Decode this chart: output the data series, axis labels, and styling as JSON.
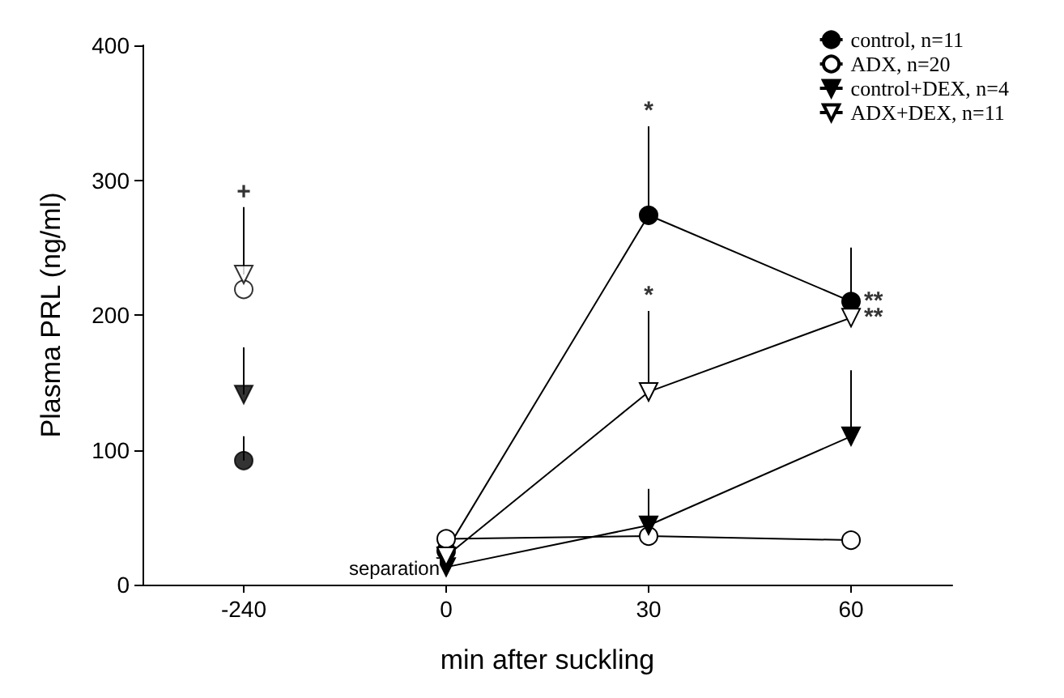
{
  "chart_data": {
    "type": "line",
    "xlabel": "min after suckling",
    "ylabel": "Plasma PRL (ng/ml)",
    "categories": [
      "-240",
      "0",
      "30",
      "60"
    ],
    "ylim": [
      0,
      400
    ],
    "yticks": [
      0,
      100,
      200,
      300,
      400
    ],
    "grid": false,
    "legend": "top right",
    "series": [
      {
        "name": "control, n=11",
        "color": "#000000",
        "marker": "circle",
        "values": [
          null,
          25,
          274,
          210
        ],
        "errors": [
          null,
          null,
          [
            274,
            340
          ],
          [
            210,
            250
          ]
        ]
      },
      {
        "name": "ADX, n=20",
        "color": "#ffffff",
        "marker": "circle",
        "values": [
          null,
          34,
          36,
          33
        ]
      },
      {
        "name": "control+DEX, n=4",
        "color": "#000000",
        "marker": "triangle",
        "values": [
          null,
          13,
          44,
          110
        ],
        "errors": [
          null,
          null,
          [
            44,
            71
          ],
          [
            110,
            159
          ]
        ]
      },
      {
        "name": "ADX+DEX, n=11",
        "color": "#ffffff",
        "marker": "triangle",
        "values": [
          null,
          21,
          143,
          198
        ],
        "errors": [
          null,
          null,
          [
            143,
            203
          ],
          null
        ]
      },
      {
        "type": "scatter",
        "color": "#000000",
        "marker": "circle",
        "values": [
          92,
          null,
          null,
          null
        ],
        "errors": [
          [
            92,
            110
          ],
          null,
          null,
          null
        ]
      },
      {
        "type": "scatter",
        "color": "#ffffff",
        "marker": "circle",
        "values": [
          219,
          null,
          null,
          null
        ]
      },
      {
        "type": "scatter",
        "color": "#000000",
        "marker": "triangle",
        "values": [
          141,
          null,
          null,
          null
        ],
        "errors": [
          [
            141,
            176
          ],
          null,
          null,
          null
        ]
      },
      {
        "type": "scatter",
        "color": "#ffffff",
        "marker": "triangle",
        "values": [
          230,
          null,
          null,
          null
        ],
        "errors": [
          [
            230,
            280
          ],
          null,
          null,
          null
        ]
      }
    ],
    "annotations": [
      {
        "text": "*",
        "x": "30",
        "y": 340
      },
      {
        "text": "*",
        "x": "30",
        "y": 203
      },
      {
        "text": "**",
        "x": "60",
        "y": 210
      },
      {
        "text": "**",
        "x": "60",
        "y": 198
      },
      {
        "text": "+",
        "x": "-240",
        "y": 280
      },
      "separation"
    ]
  }
}
